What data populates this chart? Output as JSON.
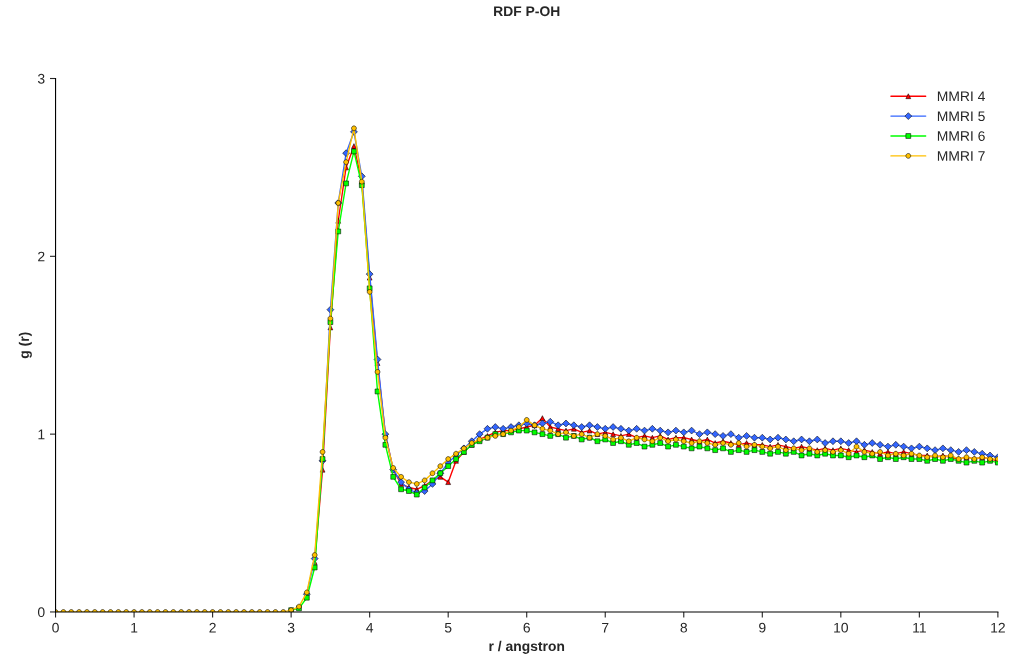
{
  "chart_data": {
    "type": "line",
    "title": "RDF P-OH",
    "xlabel": "r / angstron",
    "ylabel": "g (r)",
    "x": [
      0,
      0.1,
      0.2,
      0.3,
      0.4,
      0.5,
      0.6,
      0.7,
      0.8,
      0.9,
      1.0,
      1.1,
      1.2,
      1.3,
      1.4,
      1.5,
      1.6,
      1.7,
      1.8,
      1.9,
      2.0,
      2.1,
      2.2,
      2.3,
      2.4,
      2.5,
      2.6,
      2.7,
      2.8,
      2.9,
      3.0,
      3.1,
      3.2,
      3.3,
      3.4,
      3.5,
      3.6,
      3.7,
      3.8,
      3.9,
      4.0,
      4.1,
      4.2,
      4.3,
      4.4,
      4.5,
      4.6,
      4.7,
      4.8,
      4.9,
      5.0,
      5.1,
      5.2,
      5.3,
      5.4,
      5.5,
      5.6,
      5.7,
      5.8,
      5.9,
      6.0,
      6.1,
      6.2,
      6.3,
      6.4,
      6.5,
      6.6,
      6.7,
      6.8,
      6.9,
      7.0,
      7.1,
      7.2,
      7.3,
      7.4,
      7.5,
      7.6,
      7.7,
      7.8,
      7.9,
      8.0,
      8.1,
      8.2,
      8.3,
      8.4,
      8.5,
      8.6,
      8.7,
      8.8,
      8.9,
      9.0,
      9.1,
      9.2,
      9.3,
      9.4,
      9.5,
      9.6,
      9.7,
      9.8,
      9.9,
      10.0,
      10.1,
      10.2,
      10.3,
      10.4,
      10.5,
      10.6,
      10.7,
      10.8,
      10.9,
      11.0,
      11.1,
      11.2,
      11.3,
      11.4,
      11.5,
      11.6,
      11.7,
      11.8,
      11.9,
      12.0
    ],
    "series": [
      {
        "name": "MMRI 4",
        "color": "#ff0000",
        "marker": "triangle",
        "values": [
          null,
          null,
          null,
          null,
          null,
          null,
          null,
          null,
          null,
          null,
          null,
          null,
          null,
          null,
          null,
          null,
          null,
          null,
          null,
          null,
          null,
          null,
          null,
          null,
          null,
          null,
          null,
          null,
          null,
          null,
          null,
          null,
          null,
          0.28,
          0.8,
          1.6,
          2.2,
          2.5,
          2.62,
          2.42,
          1.88,
          1.4,
          1.0,
          0.8,
          0.72,
          0.7,
          0.69,
          0.71,
          0.74,
          0.76,
          0.73,
          0.85,
          0.9,
          0.94,
          0.97,
          0.99,
          1.01,
          1.02,
          1.02,
          1.03,
          1.04,
          1.05,
          1.09,
          1.04,
          1.03,
          1.02,
          1.03,
          1.01,
          1.02,
          1.0,
          1.01,
          1.0,
          0.99,
          1.0,
          0.98,
          0.99,
          0.98,
          0.99,
          0.97,
          0.98,
          0.98,
          0.97,
          0.96,
          0.97,
          0.95,
          0.96,
          0.95,
          0.94,
          0.95,
          0.94,
          0.94,
          0.93,
          0.94,
          0.93,
          0.92,
          0.93,
          0.92,
          0.91,
          0.92,
          0.91,
          0.92,
          0.91,
          0.9,
          0.91,
          0.9,
          0.89,
          0.9,
          0.89,
          0.9,
          0.89,
          0.88,
          0.88,
          0.87,
          0.88,
          0.87,
          0.86,
          0.87,
          0.86,
          0.87,
          0.86,
          0.85
        ]
      },
      {
        "name": "MMRI 5",
        "color": "#3366ff",
        "marker": "diamond",
        "values": [
          null,
          null,
          null,
          null,
          null,
          null,
          null,
          null,
          null,
          null,
          null,
          null,
          null,
          null,
          null,
          null,
          null,
          null,
          null,
          null,
          null,
          null,
          null,
          null,
          null,
          null,
          null,
          null,
          null,
          null,
          null,
          null,
          0.1,
          0.3,
          0.85,
          1.7,
          2.3,
          2.58,
          2.7,
          2.45,
          1.9,
          1.42,
          1.0,
          0.8,
          0.73,
          0.69,
          0.67,
          0.68,
          0.72,
          0.78,
          0.84,
          0.88,
          0.92,
          0.96,
          1.0,
          1.03,
          1.04,
          1.03,
          1.04,
          1.05,
          1.06,
          1.05,
          1.06,
          1.07,
          1.05,
          1.06,
          1.05,
          1.04,
          1.05,
          1.04,
          1.03,
          1.04,
          1.03,
          1.02,
          1.03,
          1.02,
          1.03,
          1.02,
          1.01,
          1.02,
          1.01,
          1.02,
          1.0,
          1.01,
          1.0,
          0.99,
          1.0,
          0.98,
          0.99,
          0.98,
          0.98,
          0.97,
          0.98,
          0.97,
          0.96,
          0.97,
          0.96,
          0.97,
          0.95,
          0.96,
          0.96,
          0.95,
          0.96,
          0.94,
          0.95,
          0.94,
          0.93,
          0.94,
          0.93,
          0.92,
          0.93,
          0.92,
          0.91,
          0.92,
          0.91,
          0.9,
          0.91,
          0.9,
          0.89,
          0.88,
          0.87
        ]
      },
      {
        "name": "MMRI 6",
        "color": "#00ff00",
        "marker": "square",
        "values": [
          null,
          null,
          null,
          null,
          null,
          null,
          null,
          null,
          null,
          null,
          null,
          null,
          null,
          null,
          null,
          null,
          null,
          null,
          null,
          null,
          null,
          null,
          null,
          null,
          null,
          null,
          null,
          null,
          null,
          null,
          0.01,
          0.02,
          0.08,
          0.25,
          0.86,
          1.63,
          2.14,
          2.41,
          2.59,
          2.4,
          1.82,
          1.24,
          0.94,
          0.76,
          0.69,
          0.68,
          0.66,
          0.7,
          0.74,
          0.78,
          0.82,
          0.86,
          0.9,
          0.94,
          0.96,
          0.98,
          1.0,
          1.0,
          1.01,
          1.02,
          1.02,
          1.01,
          1.0,
          0.99,
          1.0,
          0.98,
          0.99,
          0.97,
          0.98,
          0.96,
          0.97,
          0.95,
          0.96,
          0.94,
          0.95,
          0.93,
          0.94,
          0.95,
          0.93,
          0.94,
          0.93,
          0.92,
          0.93,
          0.92,
          0.91,
          0.92,
          0.9,
          0.91,
          0.9,
          0.91,
          0.9,
          0.89,
          0.9,
          0.89,
          0.9,
          0.88,
          0.89,
          0.88,
          0.89,
          0.88,
          0.88,
          0.87,
          0.88,
          0.87,
          0.88,
          0.86,
          0.87,
          0.86,
          0.87,
          0.86,
          0.86,
          0.85,
          0.86,
          0.85,
          0.86,
          0.85,
          0.84,
          0.85,
          0.84,
          0.85,
          0.84
        ]
      },
      {
        "name": "MMRI 7",
        "color": "#ffc000",
        "marker": "circle",
        "values": [
          0,
          0,
          0,
          0,
          0,
          0,
          0,
          0,
          0,
          0,
          0,
          0,
          0,
          0,
          0,
          0,
          0,
          0,
          0,
          0,
          0,
          0,
          0,
          0,
          0,
          0,
          0,
          0,
          0,
          0,
          0.01,
          0.03,
          0.11,
          0.32,
          0.9,
          1.65,
          2.3,
          2.53,
          2.72,
          2.42,
          1.8,
          1.35,
          0.98,
          0.81,
          0.76,
          0.73,
          0.72,
          0.74,
          0.78,
          0.82,
          0.86,
          0.89,
          0.92,
          0.95,
          0.97,
          0.98,
          0.99,
          1.0,
          1.02,
          1.04,
          1.08,
          1.05,
          1.03,
          1.02,
          1.0,
          1.01,
          0.99,
          1.0,
          0.98,
          1.0,
          0.99,
          0.97,
          0.98,
          0.96,
          0.98,
          0.97,
          0.96,
          0.98,
          0.96,
          0.97,
          0.96,
          0.95,
          0.96,
          0.95,
          0.94,
          0.95,
          0.94,
          0.95,
          0.93,
          0.94,
          0.93,
          0.92,
          0.93,
          0.91,
          0.92,
          0.91,
          0.92,
          0.9,
          0.91,
          0.9,
          0.91,
          0.89,
          0.93,
          0.9,
          0.89,
          0.9,
          0.88,
          0.89,
          0.88,
          0.89,
          0.88,
          0.87,
          0.88,
          0.87,
          0.88,
          0.86,
          0.87,
          0.86,
          0.87,
          0.86,
          0.86
        ]
      }
    ],
    "xlim": [
      0,
      12
    ],
    "xticks": [
      0,
      1,
      2,
      3,
      4,
      5,
      6,
      7,
      8,
      9,
      10,
      11,
      12
    ],
    "ylim": [
      0,
      3
    ],
    "yticks": [
      0,
      1,
      2,
      3
    ],
    "grid": false,
    "legend": "top right",
    "line_style": "solid"
  }
}
